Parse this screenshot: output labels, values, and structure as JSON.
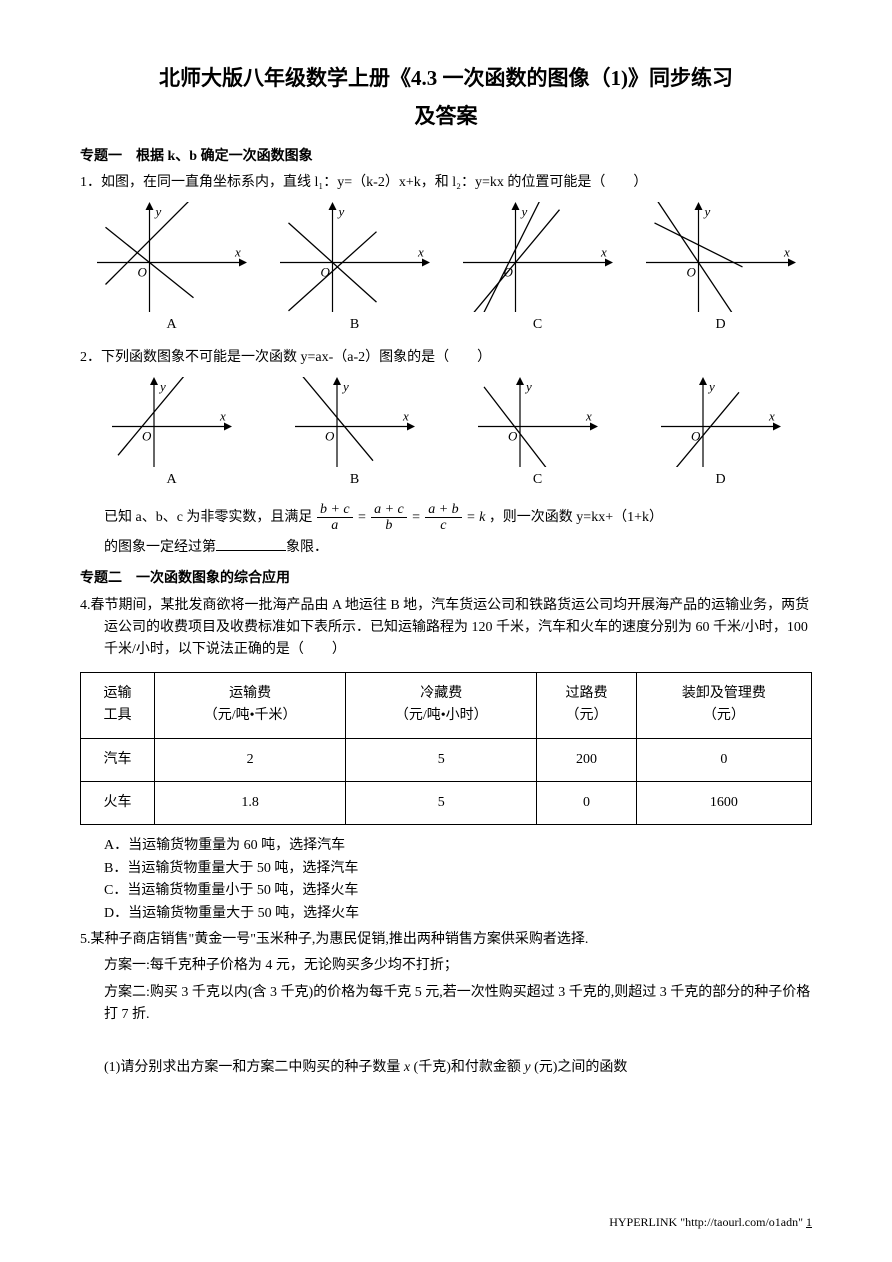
{
  "title_line1": "北师大版八年级数学上册《4.3 一次函数的图像（1)》同步练习",
  "title_line2": "及答案",
  "section1": {
    "heading": "专题一　根据 k、b 确定一次函数图象",
    "q1_text": "1．如图，在同一直角坐标系内，直线 l₁：y=（k-2）x+k，和 l₂：y=kx 的位置可能是（　　）",
    "q1_charts": {
      "labels": [
        "A",
        "B",
        "C",
        "D"
      ],
      "axis_color": "#000000",
      "line_color": "#000000",
      "stroke_width": 1.2,
      "charts": [
        {
          "id": "A",
          "lines": [
            {
              "slope": 1,
              "intercept": 0.5
            },
            {
              "slope": -0.8,
              "intercept": 0
            }
          ]
        },
        {
          "id": "B",
          "lines": [
            {
              "slope": 0.9,
              "intercept": -0.2
            },
            {
              "slope": -0.9,
              "intercept": 0
            }
          ]
        },
        {
          "id": "C",
          "lines": [
            {
              "slope": 2,
              "intercept": 0.3
            },
            {
              "slope": 1.2,
              "intercept": 0
            }
          ]
        },
        {
          "id": "D",
          "lines": [
            {
              "slope": -0.5,
              "intercept": 0.4
            },
            {
              "slope": -1.5,
              "intercept": 0
            }
          ]
        }
      ]
    },
    "q2_text": "2．下列函数图象不可能是一次函数 y=ax-（a-2）图象的是（　　）",
    "q2_charts": {
      "labels": [
        "A",
        "B",
        "C",
        "D"
      ],
      "charts": [
        {
          "id": "A",
          "line": {
            "slope": 1.2,
            "intercept": 0.4
          }
        },
        {
          "id": "B",
          "line": {
            "slope": -1.2,
            "intercept": 0.25
          }
        },
        {
          "id": "C",
          "line": {
            "slope": -1.3,
            "intercept": -0.2
          }
        },
        {
          "id": "D",
          "line": {
            "slope": 1.2,
            "intercept": -0.25
          }
        }
      ]
    },
    "q3_part1": "已知 a、b、c 为非零实数，且满足",
    "q3_part2": "，则一次函数 y=kx+（1+k）",
    "q3_part3": "的图象一定经过第",
    "q3_part4": "象限．"
  },
  "section2": {
    "heading": "专题二　一次函数图象的综合应用",
    "q4_text": "4.春节期间，某批发商欲将一批海产品由 A 地运往 B 地，汽车货运公司和铁路货运公司均开展海产品的运输业务，两货运公司的收费项目及收费标准如下表所示．已知运输路程为 120 千米，汽车和火车的速度分别为 60 千米/小时，100 千米/小时，以下说法正确的是（　　）",
    "table": {
      "columns": [
        "运输\n工具",
        "运输费\n（元/吨•千米）",
        "冷藏费\n（元/吨•小时）",
        "过路费\n（元）",
        "装卸及管理费\n（元）"
      ],
      "rows": [
        [
          "汽车",
          "2",
          "5",
          "200",
          "0"
        ],
        [
          "火车",
          "1.8",
          "5",
          "0",
          "1600"
        ]
      ]
    },
    "q4_options": [
      "A．当运输货物重量为 60 吨，选择汽车",
      "B．当运输货物重量大于 50 吨，选择汽车",
      "C．当运输货物重量小于 50 吨，选择火车",
      "D．当运输货物重量大于 50 吨，选择火车"
    ],
    "q5_text": "5.某种子商店销售\"黄金一号\"玉米种子,为惠民促销,推出两种销售方案供采购者选择.",
    "q5_plan1": "方案一:每千克种子价格为 4 元，无论购买多少均不打折；",
    "q5_plan2": "方案二:购买 3 千克以内(含 3 千克)的价格为每千克 5 元,若一次性购买超过 3 千克的,则超过 3 千克的部分的种子价格打 7 折.",
    "q5_sub1": "(1)请分别求出方案一和方案二中购买的种子数量 x (千克)和付款金额 y (元)之间的函数"
  },
  "footer": {
    "label": "HYPERLINK",
    "url": "\"http://taourl.com/o1adn\"",
    "page": "1"
  }
}
